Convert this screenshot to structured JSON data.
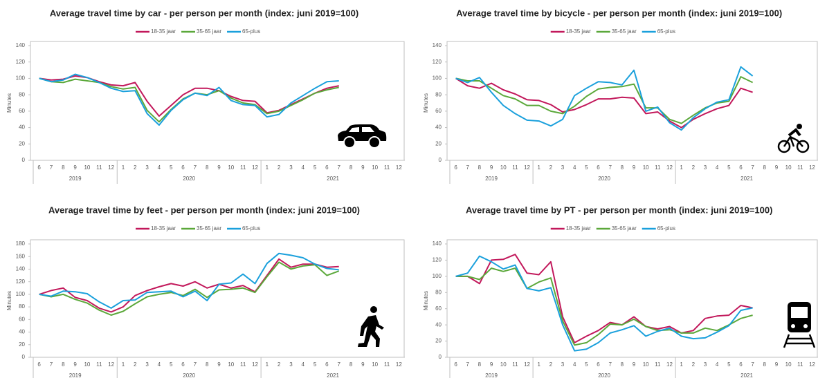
{
  "chart_data": [
    {
      "type": "line",
      "title": "Average travel time by car - per person per month (index: juni 2019=100)",
      "y_label": "Minutes",
      "category_groups": [
        {
          "label": "2019",
          "categories": [
            "6",
            "7",
            "8",
            "9",
            "10",
            "11",
            "12"
          ]
        },
        {
          "label": "2020",
          "categories": [
            "1",
            "2",
            "3",
            "4",
            "5",
            "6",
            "7",
            "8",
            "9",
            "10",
            "11",
            "12"
          ]
        },
        {
          "label": "2021",
          "categories": [
            "1",
            "2",
            "3",
            "4",
            "5",
            "6",
            "7",
            "8",
            "9",
            "10",
            "11",
            "12"
          ]
        }
      ],
      "ylim": [
        0,
        140
      ],
      "yticks": [
        0,
        20,
        40,
        60,
        80,
        100,
        120,
        140
      ],
      "grid": false,
      "legend": "top",
      "series": [
        {
          "name": "18-35 jaar",
          "color": "#c2185b",
          "values": [
            100,
            98,
            99,
            103,
            101,
            96,
            92,
            91,
            95,
            72,
            54,
            67,
            80,
            88,
            88,
            85,
            78,
            73,
            72,
            58,
            61,
            68,
            75,
            82,
            88,
            91,
            null,
            null,
            null,
            null,
            null
          ]
        },
        {
          "name": "35-65 jaar",
          "color": "#5ba83a",
          "values": [
            100,
            96,
            95,
            99,
            97,
            95,
            90,
            87,
            89,
            61,
            47,
            62,
            75,
            82,
            80,
            85,
            76,
            70,
            68,
            57,
            60,
            67,
            74,
            82,
            86,
            89,
            null,
            null,
            null,
            null,
            null
          ]
        },
        {
          "name": "65-plus",
          "color": "#1aa0dc",
          "values": [
            100,
            96,
            98,
            105,
            101,
            95,
            88,
            84,
            85,
            57,
            43,
            61,
            74,
            82,
            79,
            89,
            73,
            68,
            67,
            53,
            56,
            70,
            79,
            88,
            96,
            97,
            null,
            null,
            null,
            null,
            null
          ]
        }
      ]
    },
    {
      "type": "line",
      "title": "Average travel time by bicycle - per person per month (index: juni 2019=100)",
      "y_label": "Minutes",
      "category_groups": [
        {
          "label": "2019",
          "categories": [
            "6",
            "7",
            "8",
            "9",
            "10",
            "11",
            "12"
          ]
        },
        {
          "label": "2020",
          "categories": [
            "1",
            "2",
            "3",
            "4",
            "5",
            "6",
            "7",
            "8",
            "9",
            "10",
            "11",
            "12"
          ]
        },
        {
          "label": "2021",
          "categories": [
            "1",
            "2",
            "3",
            "4",
            "5",
            "6",
            "7",
            "8",
            "9",
            "10",
            "11",
            "12"
          ]
        }
      ],
      "ylim": [
        0,
        140
      ],
      "yticks": [
        0,
        20,
        40,
        60,
        80,
        100,
        120,
        140
      ],
      "grid": false,
      "legend": "top",
      "series": [
        {
          "name": "18-35 jaar",
          "color": "#c2185b",
          "values": [
            100,
            91,
            88,
            94,
            86,
            81,
            74,
            73,
            68,
            59,
            62,
            68,
            75,
            75,
            77,
            76,
            57,
            59,
            48,
            40,
            50,
            57,
            63,
            67,
            88,
            83,
            null,
            null,
            null,
            null,
            null
          ]
        },
        {
          "name": "35-65 jaar",
          "color": "#5ba83a",
          "values": [
            100,
            97,
            97,
            88,
            79,
            75,
            67,
            67,
            60,
            57,
            66,
            78,
            87,
            89,
            90,
            93,
            64,
            64,
            50,
            45,
            55,
            64,
            70,
            72,
            102,
            95,
            null,
            null,
            null,
            null,
            null
          ]
        },
        {
          "name": "65-plus",
          "color": "#1aa0dc",
          "values": [
            100,
            95,
            101,
            83,
            67,
            57,
            49,
            48,
            42,
            50,
            79,
            88,
            96,
            95,
            92,
            110,
            60,
            65,
            46,
            37,
            52,
            63,
            71,
            74,
            114,
            103,
            null,
            null,
            null,
            null,
            null
          ]
        }
      ]
    },
    {
      "type": "line",
      "title": "Average travel time by feet - per person per month (index: juni 2019=100)",
      "y_label": "Minutes",
      "category_groups": [
        {
          "label": "2019",
          "categories": [
            "6",
            "7",
            "8",
            "9",
            "10",
            "11",
            "12"
          ]
        },
        {
          "label": "2020",
          "categories": [
            "1",
            "2",
            "3",
            "4",
            "5",
            "6",
            "7",
            "8",
            "9",
            "10",
            "11",
            "12"
          ]
        },
        {
          "label": "2021",
          "categories": [
            "1",
            "2",
            "3",
            "4",
            "5",
            "6",
            "7",
            "8",
            "9",
            "10",
            "11",
            "12"
          ]
        }
      ],
      "ylim": [
        0,
        180
      ],
      "yticks": [
        0,
        20,
        40,
        60,
        80,
        100,
        120,
        140,
        160,
        180
      ],
      "grid": false,
      "legend": "top",
      "series": [
        {
          "name": "18-35 jaar",
          "color": "#c2185b",
          "values": [
            100,
            106,
            110,
            95,
            90,
            78,
            72,
            80,
            98,
            106,
            112,
            117,
            113,
            120,
            110,
            116,
            110,
            114,
            104,
            130,
            156,
            143,
            148,
            148,
            143,
            144,
            null,
            null,
            null,
            null,
            null
          ]
        },
        {
          "name": "35-65 jaar",
          "color": "#5ba83a",
          "values": [
            100,
            96,
            100,
            92,
            86,
            75,
            67,
            73,
            85,
            96,
            100,
            103,
            98,
            108,
            95,
            107,
            108,
            110,
            103,
            128,
            151,
            140,
            145,
            147,
            130,
            137,
            null,
            null,
            null,
            null,
            null
          ]
        },
        {
          "name": "65-plus",
          "color": "#1aa0dc",
          "values": [
            100,
            97,
            105,
            104,
            101,
            88,
            78,
            90,
            91,
            103,
            104,
            105,
            96,
            105,
            90,
            116,
            118,
            132,
            117,
            149,
            165,
            162,
            158,
            148,
            141,
            139,
            null,
            null,
            null,
            null,
            null
          ]
        }
      ]
    },
    {
      "type": "line",
      "title": "Average travel time by PT - per person per month (index: juni 2019=100)",
      "y_label": "Minutes",
      "category_groups": [
        {
          "label": "2019",
          "categories": [
            "6",
            "7",
            "8",
            "9",
            "10",
            "11",
            "12"
          ]
        },
        {
          "label": "2020",
          "categories": [
            "1",
            "2",
            "3",
            "4",
            "5",
            "6",
            "7",
            "8",
            "9",
            "10",
            "11",
            "12"
          ]
        },
        {
          "label": "2021",
          "categories": [
            "1",
            "2",
            "3",
            "4",
            "5",
            "6",
            "7",
            "8",
            "9",
            "10",
            "11",
            "12"
          ]
        }
      ],
      "ylim": [
        0,
        140
      ],
      "yticks": [
        0,
        20,
        40,
        60,
        80,
        100,
        120,
        140
      ],
      "grid": false,
      "legend": "top",
      "series": [
        {
          "name": "18-35 jaar",
          "color": "#c2185b",
          "values": [
            100,
            100,
            91,
            120,
            121,
            127,
            104,
            102,
            118,
            50,
            18,
            26,
            33,
            43,
            40,
            50,
            38,
            35,
            38,
            30,
            33,
            48,
            51,
            52,
            64,
            61,
            null,
            null,
            null,
            null,
            null
          ]
        },
        {
          "name": "35-65 jaar",
          "color": "#5ba83a",
          "values": [
            100,
            100,
            96,
            110,
            106,
            110,
            85,
            93,
            98,
            45,
            15,
            18,
            28,
            41,
            40,
            47,
            38,
            33,
            34,
            30,
            30,
            36,
            33,
            40,
            48,
            52,
            null,
            null,
            null,
            null,
            null
          ]
        },
        {
          "name": "65-plus",
          "color": "#1aa0dc",
          "values": [
            100,
            104,
            125,
            118,
            109,
            114,
            85,
            82,
            86,
            40,
            8,
            10,
            18,
            30,
            34,
            39,
            26,
            32,
            36,
            26,
            23,
            24,
            31,
            39,
            58,
            61,
            null,
            null,
            null,
            null,
            null
          ]
        }
      ]
    }
  ]
}
